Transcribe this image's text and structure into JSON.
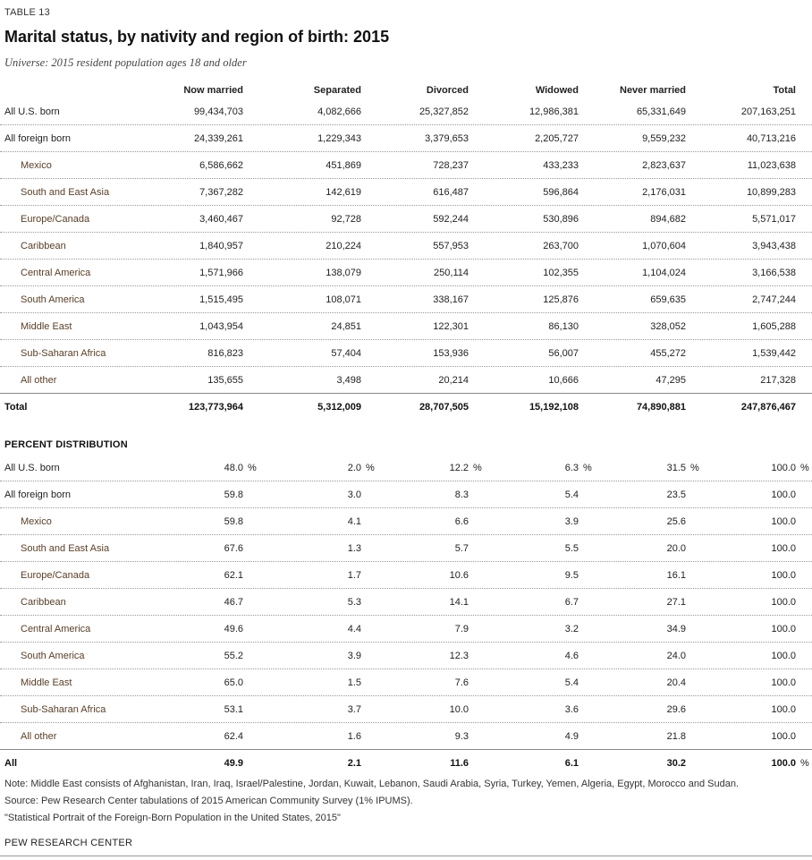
{
  "table_num": "TABLE 13",
  "title": "Marital status, by nativity and region of birth: 2015",
  "universe": "Universe: 2015 resident population ages 18 and older",
  "columns": [
    "Now married",
    "Separated",
    "Divorced",
    "Widowed",
    "Never married",
    "Total"
  ],
  "counts": [
    {
      "label": "All U.S. born",
      "level": "top",
      "values": [
        "99,434,703",
        "4,082,666",
        "25,327,852",
        "12,986,381",
        "65,331,649",
        "207,163,251"
      ]
    },
    {
      "label": "All foreign born",
      "level": "top",
      "values": [
        "24,339,261",
        "1,229,343",
        "3,379,653",
        "2,205,727",
        "9,559,232",
        "40,713,216"
      ]
    },
    {
      "label": "Mexico",
      "level": "sub",
      "values": [
        "6,586,662",
        "451,869",
        "728,237",
        "433,233",
        "2,823,637",
        "11,023,638"
      ]
    },
    {
      "label": "South and East Asia",
      "level": "sub",
      "values": [
        "7,367,282",
        "142,619",
        "616,487",
        "596,864",
        "2,176,031",
        "10,899,283"
      ]
    },
    {
      "label": "Europe/Canada",
      "level": "sub",
      "values": [
        "3,460,467",
        "92,728",
        "592,244",
        "530,896",
        "894,682",
        "5,571,017"
      ]
    },
    {
      "label": "Caribbean",
      "level": "sub",
      "values": [
        "1,840,957",
        "210,224",
        "557,953",
        "263,700",
        "1,070,604",
        "3,943,438"
      ]
    },
    {
      "label": "Central America",
      "level": "sub",
      "values": [
        "1,571,966",
        "138,079",
        "250,114",
        "102,355",
        "1,104,024",
        "3,166,538"
      ]
    },
    {
      "label": "South America",
      "level": "sub",
      "values": [
        "1,515,495",
        "108,071",
        "338,167",
        "125,876",
        "659,635",
        "2,747,244"
      ]
    },
    {
      "label": "Middle East",
      "level": "sub",
      "values": [
        "1,043,954",
        "24,851",
        "122,301",
        "86,130",
        "328,052",
        "1,605,288"
      ]
    },
    {
      "label": "Sub-Saharan Africa",
      "level": "sub",
      "values": [
        "816,823",
        "57,404",
        "153,936",
        "56,007",
        "455,272",
        "1,539,442"
      ]
    },
    {
      "label": "All other",
      "level": "sub",
      "values": [
        "135,655",
        "3,498",
        "20,214",
        "10,666",
        "47,295",
        "217,328"
      ]
    },
    {
      "label": "Total",
      "level": "total",
      "values": [
        "123,773,964",
        "5,312,009",
        "28,707,505",
        "15,192,108",
        "74,890,881",
        "247,876,467"
      ]
    }
  ],
  "percent_heading": "PERCENT DISTRIBUTION",
  "percent_sign": "%",
  "percents": [
    {
      "label": "All U.S. born",
      "level": "top",
      "pct": true,
      "values": [
        "48.0",
        "2.0",
        "12.2",
        "6.3",
        "31.5",
        "100.0"
      ]
    },
    {
      "label": "All foreign born",
      "level": "top",
      "values": [
        "59.8",
        "3.0",
        "8.3",
        "5.4",
        "23.5",
        "100.0"
      ]
    },
    {
      "label": "Mexico",
      "level": "sub",
      "values": [
        "59.8",
        "4.1",
        "6.6",
        "3.9",
        "25.6",
        "100.0"
      ]
    },
    {
      "label": "South and East Asia",
      "level": "sub",
      "values": [
        "67.6",
        "1.3",
        "5.7",
        "5.5",
        "20.0",
        "100.0"
      ]
    },
    {
      "label": "Europe/Canada",
      "level": "sub",
      "values": [
        "62.1",
        "1.7",
        "10.6",
        "9.5",
        "16.1",
        "100.0"
      ]
    },
    {
      "label": "Caribbean",
      "level": "sub",
      "values": [
        "46.7",
        "5.3",
        "14.1",
        "6.7",
        "27.1",
        "100.0"
      ]
    },
    {
      "label": "Central America",
      "level": "sub",
      "values": [
        "49.6",
        "4.4",
        "7.9",
        "3.2",
        "34.9",
        "100.0"
      ]
    },
    {
      "label": "South America",
      "level": "sub",
      "values": [
        "55.2",
        "3.9",
        "12.3",
        "4.6",
        "24.0",
        "100.0"
      ]
    },
    {
      "label": "Middle East",
      "level": "sub",
      "values": [
        "65.0",
        "1.5",
        "7.6",
        "5.4",
        "20.4",
        "100.0"
      ]
    },
    {
      "label": "Sub-Saharan Africa",
      "level": "sub",
      "values": [
        "53.1",
        "3.7",
        "10.0",
        "3.6",
        "29.6",
        "100.0"
      ]
    },
    {
      "label": "All other",
      "level": "sub",
      "values": [
        "62.4",
        "1.6",
        "9.3",
        "4.9",
        "21.8",
        "100.0"
      ]
    },
    {
      "label": "All",
      "level": "total",
      "total_pct": true,
      "values": [
        "49.9",
        "2.1",
        "11.6",
        "6.1",
        "30.2",
        "100.0"
      ]
    }
  ],
  "notes": [
    "Note: Middle East consists of Afghanistan, Iran, Iraq, Israel/Palestine, Jordan, Kuwait, Lebanon, Saudi Arabia, Syria, Turkey, Yemen, Algeria, Egypt, Morocco and Sudan.",
    "Source: Pew Research Center tabulations of 2015 American Community Survey (1% IPUMS).",
    "\"Statistical Portrait of the Foreign-Born Population in the United States, 2015\""
  ],
  "brand": "PEW RESEARCH CENTER",
  "colors": {
    "sub_label": "#5a3e24",
    "text": "#222222",
    "rule": "#888888"
  }
}
